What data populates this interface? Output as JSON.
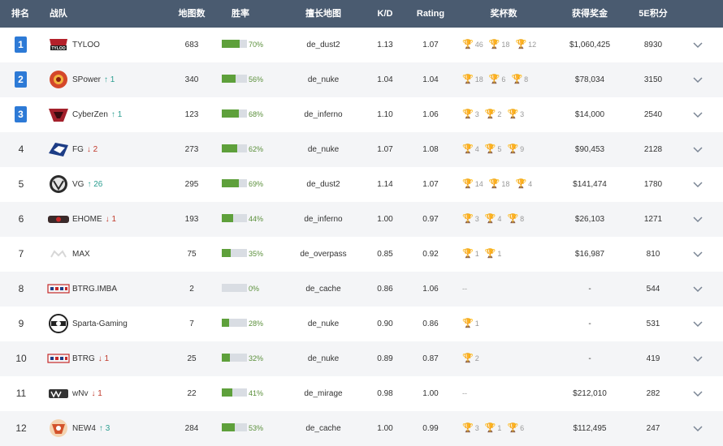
{
  "header": {
    "rank": "排名",
    "team": "战队",
    "maps": "地图数",
    "winrate": "胜率",
    "best_map": "擅长地图",
    "kd": "K/D",
    "rating": "Rating",
    "trophies": "奖杯数",
    "prize": "获得奖金",
    "score": "5E积分"
  },
  "colors": {
    "header_bg": "#4a5b70",
    "top3_rank_bg": "#2d7ad6",
    "winrate_bar": "#5ea03b",
    "rank_up": "#2a9d8f",
    "rank_down": "#c0392b",
    "gold": "#e1a72a",
    "silver": "#b8b8b8",
    "bronze": "#c9823b"
  },
  "rows": [
    {
      "rank": "1",
      "top": true,
      "logo": "tyloo-logo",
      "team": "TYLOO",
      "change": "",
      "dir": "",
      "maps": "683",
      "winrate_pct": 70,
      "winrate": "70%",
      "best_map": "de_dust2",
      "kd": "1.13",
      "rating": "1.07",
      "trophies": [
        {
          "type": "gold",
          "count": "46"
        },
        {
          "type": "silver",
          "count": "18"
        },
        {
          "type": "bronze",
          "count": "12"
        }
      ],
      "prize": "$1,060,425",
      "score": "8930"
    },
    {
      "rank": "2",
      "top": true,
      "logo": "spower-logo",
      "team": "SPower",
      "change": "1",
      "dir": "up",
      "maps": "340",
      "winrate_pct": 56,
      "winrate": "56%",
      "best_map": "de_nuke",
      "kd": "1.04",
      "rating": "1.04",
      "trophies": [
        {
          "type": "gold",
          "count": "18"
        },
        {
          "type": "silver",
          "count": "6"
        },
        {
          "type": "silver",
          "count": "8"
        }
      ],
      "prize": "$78,034",
      "score": "3150"
    },
    {
      "rank": "3",
      "top": true,
      "logo": "cyberzen-logo",
      "team": "CyberZen",
      "change": "1",
      "dir": "up",
      "maps": "123",
      "winrate_pct": 68,
      "winrate": "68%",
      "best_map": "de_inferno",
      "kd": "1.10",
      "rating": "1.06",
      "trophies": [
        {
          "type": "gold",
          "count": "3"
        },
        {
          "type": "silver",
          "count": "2"
        },
        {
          "type": "bronze",
          "count": "3"
        }
      ],
      "prize": "$14,000",
      "score": "2540"
    },
    {
      "rank": "4",
      "top": false,
      "logo": "fg-logo",
      "team": "FG",
      "change": "2",
      "dir": "down",
      "maps": "273",
      "winrate_pct": 62,
      "winrate": "62%",
      "best_map": "de_nuke",
      "kd": "1.07",
      "rating": "1.08",
      "trophies": [
        {
          "type": "gold",
          "count": "4"
        },
        {
          "type": "silver",
          "count": "5"
        },
        {
          "type": "bronze",
          "count": "9"
        }
      ],
      "prize": "$90,453",
      "score": "2128"
    },
    {
      "rank": "5",
      "top": false,
      "logo": "vg-logo",
      "team": "VG",
      "change": "26",
      "dir": "up",
      "maps": "295",
      "winrate_pct": 69,
      "winrate": "69%",
      "best_map": "de_dust2",
      "kd": "1.14",
      "rating": "1.07",
      "trophies": [
        {
          "type": "silver",
          "count": "14"
        },
        {
          "type": "silver",
          "count": "18"
        },
        {
          "type": "silver",
          "count": "4"
        }
      ],
      "prize": "$141,474",
      "score": "1780"
    },
    {
      "rank": "6",
      "top": false,
      "logo": "ehome-logo",
      "team": "EHOME",
      "change": "1",
      "dir": "down",
      "maps": "193",
      "winrate_pct": 44,
      "winrate": "44%",
      "best_map": "de_inferno",
      "kd": "1.00",
      "rating": "0.97",
      "trophies": [
        {
          "type": "gold",
          "count": "3"
        },
        {
          "type": "silver",
          "count": "4"
        },
        {
          "type": "bronze",
          "count": "8"
        }
      ],
      "prize": "$26,103",
      "score": "1271"
    },
    {
      "rank": "7",
      "top": false,
      "logo": "max-logo",
      "team": "MAX",
      "change": "",
      "dir": "",
      "maps": "75",
      "winrate_pct": 35,
      "winrate": "35%",
      "best_map": "de_overpass",
      "kd": "0.85",
      "rating": "0.92",
      "trophies": [
        {
          "type": "gold",
          "count": "1"
        },
        {
          "type": "bronze",
          "count": "1"
        }
      ],
      "prize": "$16,987",
      "score": "810"
    },
    {
      "rank": "8",
      "top": false,
      "logo": "btrg-logo",
      "team": "BTRG.IMBA",
      "change": "",
      "dir": "",
      "maps": "2",
      "winrate_pct": 0,
      "winrate": "0%",
      "best_map": "de_cache",
      "kd": "0.86",
      "rating": "1.06",
      "trophies": [],
      "trophies_text": "--",
      "prize": "-",
      "score": "544"
    },
    {
      "rank": "9",
      "top": false,
      "logo": "sparta-logo",
      "team": "Sparta-Gaming",
      "change": "",
      "dir": "",
      "maps": "7",
      "winrate_pct": 28,
      "winrate": "28%",
      "best_map": "de_nuke",
      "kd": "0.90",
      "rating": "0.86",
      "trophies": [
        {
          "type": "silver",
          "count": "1"
        }
      ],
      "prize": "-",
      "score": "531"
    },
    {
      "rank": "10",
      "top": false,
      "logo": "btrg-logo",
      "team": "BTRG",
      "change": "1",
      "dir": "down",
      "maps": "25",
      "winrate_pct": 32,
      "winrate": "32%",
      "best_map": "de_nuke",
      "kd": "0.89",
      "rating": "0.87",
      "trophies": [
        {
          "type": "bronze",
          "count": "2"
        }
      ],
      "prize": "-",
      "score": "419"
    },
    {
      "rank": "11",
      "top": false,
      "logo": "wnv-logo",
      "team": "wNv",
      "change": "1",
      "dir": "down",
      "maps": "22",
      "winrate_pct": 41,
      "winrate": "41%",
      "best_map": "de_mirage",
      "kd": "0.98",
      "rating": "1.00",
      "trophies": [],
      "trophies_text": "--",
      "prize": "$212,010",
      "score": "282"
    },
    {
      "rank": "12",
      "top": false,
      "logo": "new4-logo",
      "team": "NEW4",
      "change": "3",
      "dir": "up",
      "maps": "284",
      "winrate_pct": 53,
      "winrate": "53%",
      "best_map": "de_cache",
      "kd": "1.00",
      "rating": "0.99",
      "trophies": [
        {
          "type": "gold",
          "count": "3"
        },
        {
          "type": "silver",
          "count": "1"
        },
        {
          "type": "bronze",
          "count": "6"
        }
      ],
      "prize": "$112,495",
      "score": "247"
    }
  ]
}
